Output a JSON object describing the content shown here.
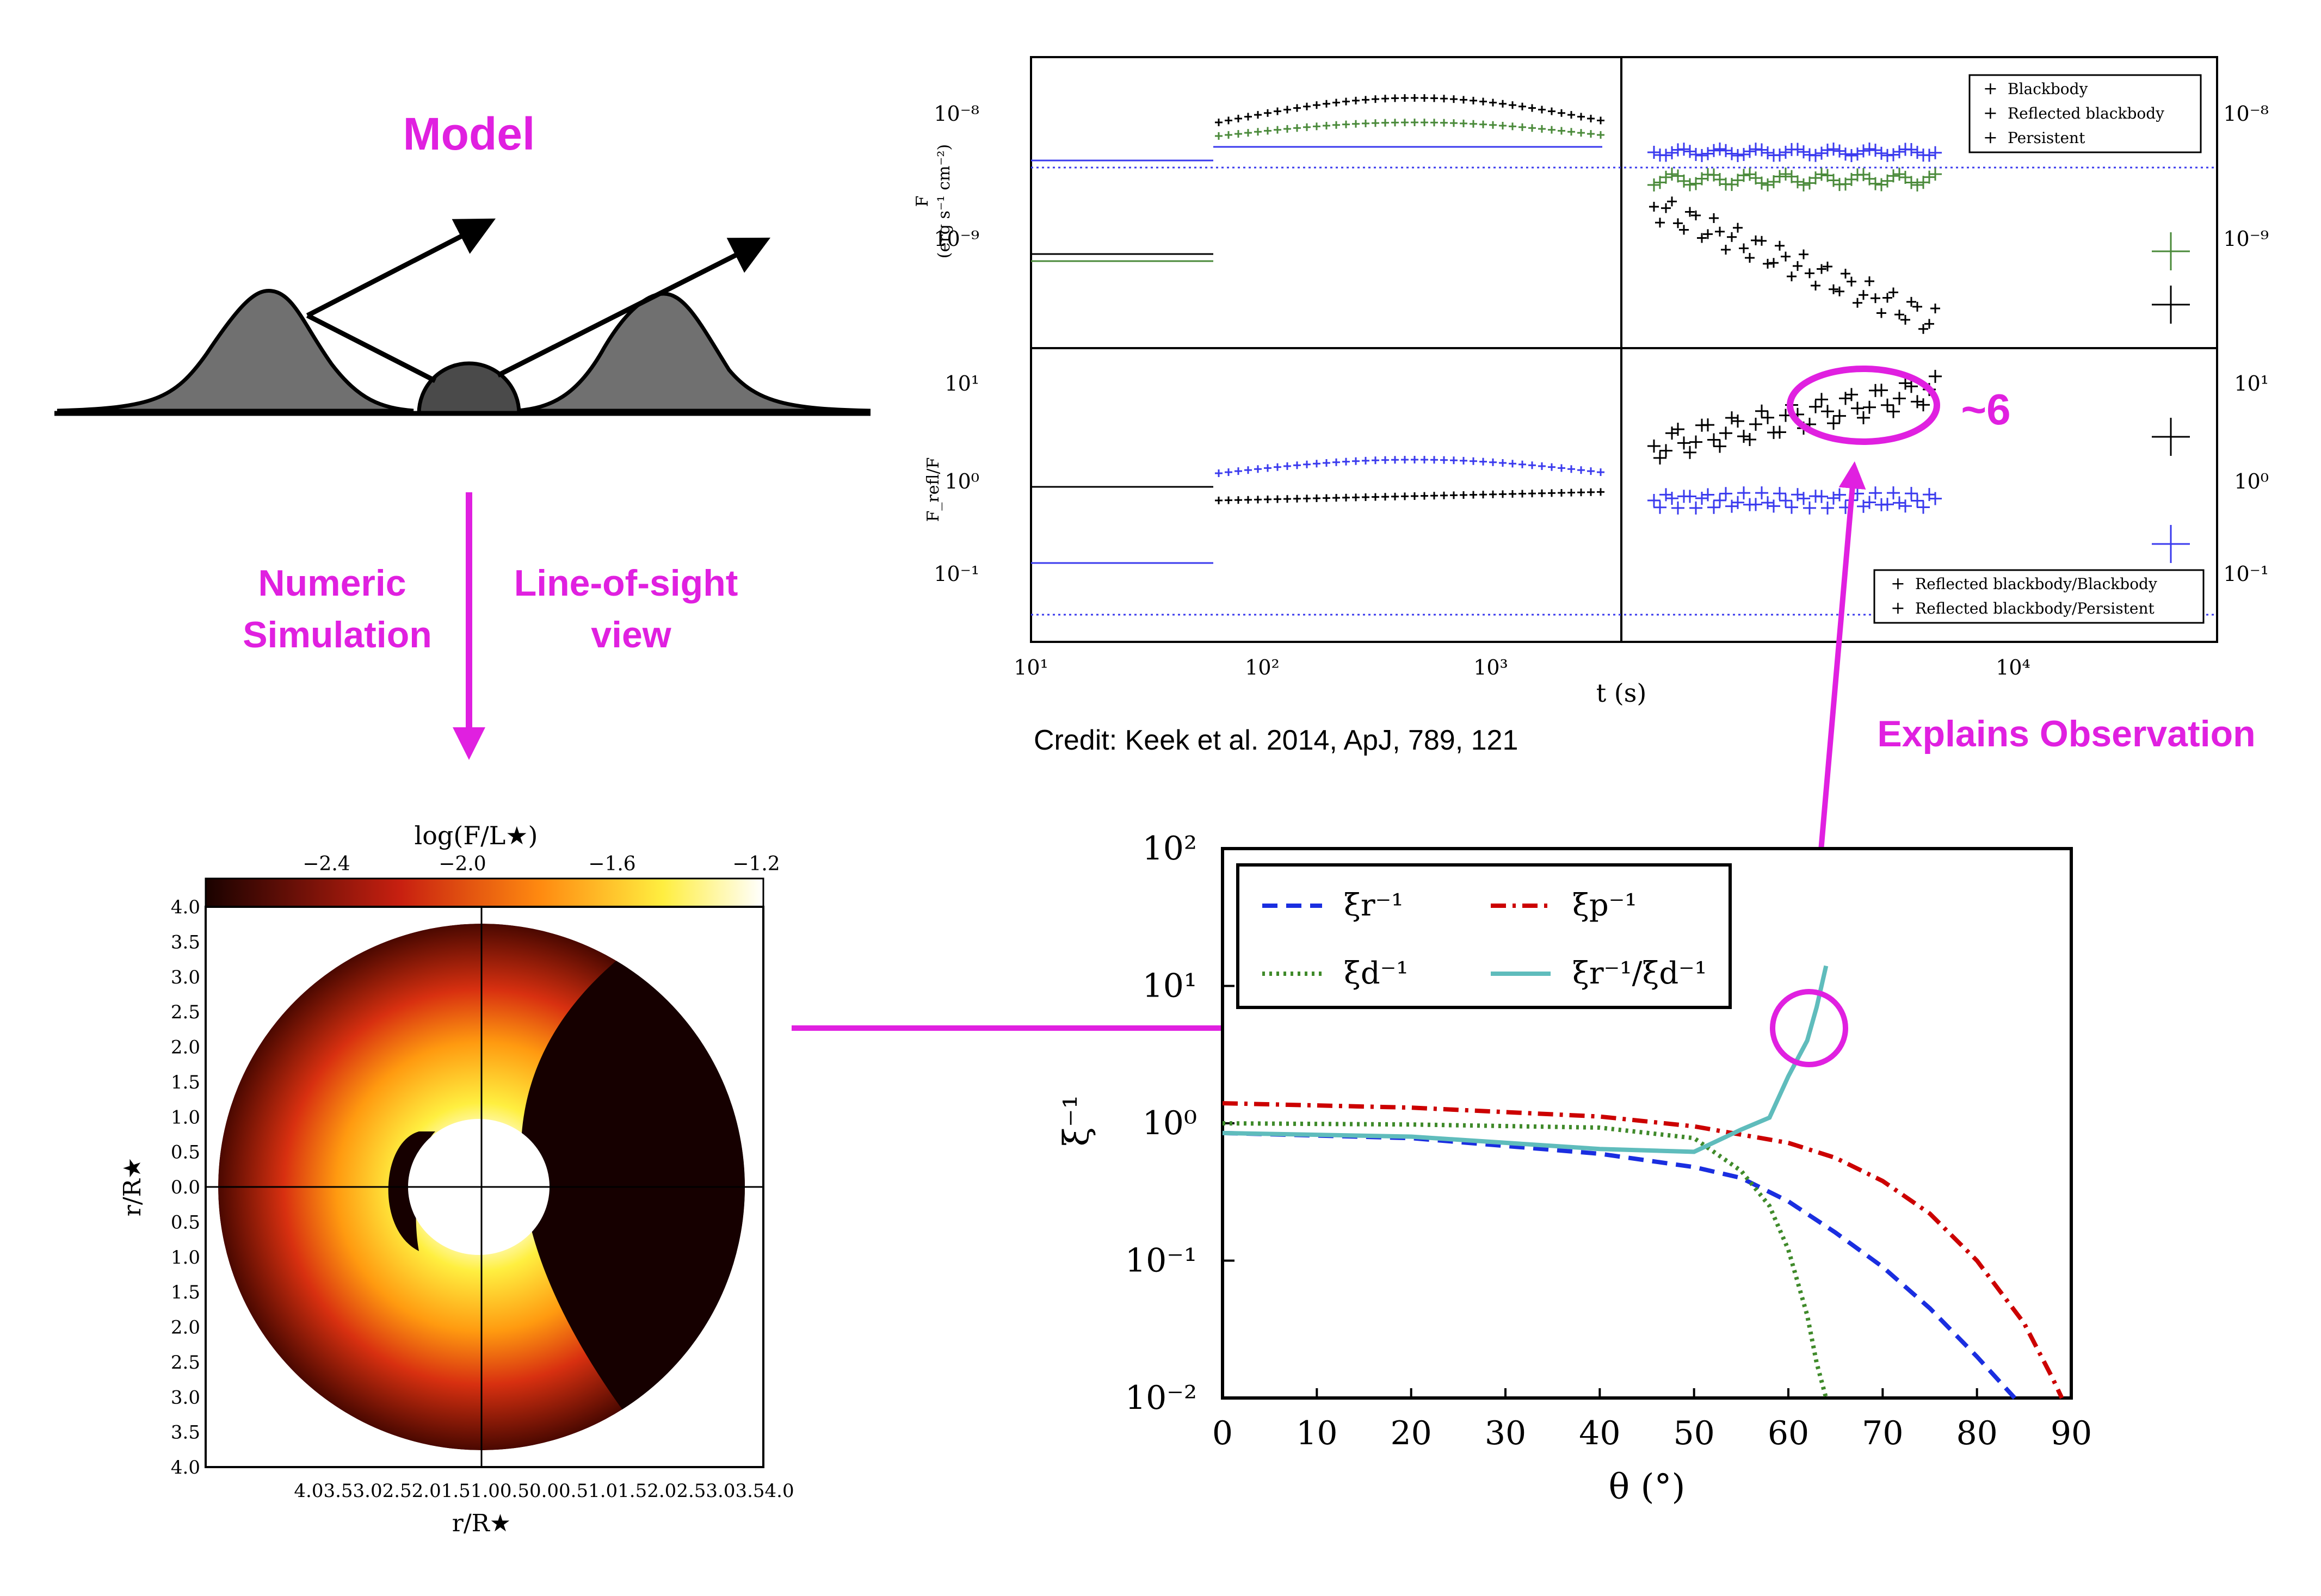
{
  "labels": {
    "model": "Model",
    "numeric_simulation": "Numeric\nSimulation",
    "line_of_sight": "Line-of-sight\nview",
    "explains_observation": "Explains Observation",
    "approx_six": "~6",
    "credit": "Credit: Keek et al. 2014, ApJ, 789, 121"
  },
  "colors": {
    "accent": "#e020e0",
    "gray_peak": "#707070",
    "dark_star": "#4a4a4a",
    "black_series": "#000000",
    "green_series": "#4a8a3a",
    "blue_series": "#3a3aee",
    "teal_series": "#5fbcbc",
    "red_series": "#cc0000"
  },
  "image_panel": {
    "colorbar_label": "log(F/L★)",
    "colorbar_ticks": [
      "−2.4",
      "−2.0",
      "−1.6",
      "−1.2"
    ],
    "y_label": "r/R★",
    "x_label": "r/R★",
    "y_ticks": [
      "4.0",
      "3.5",
      "3.0",
      "2.5",
      "2.0",
      "1.5",
      "1.0",
      "0.5",
      "0.0",
      "0.5",
      "1.0",
      "1.5",
      "2.0",
      "2.5",
      "3.0",
      "3.5",
      "4.0"
    ],
    "x_ticks_joined": "4.03.53.02.52.01.51.00.50.00.51.01.52.02.53.03.54.0"
  },
  "observation_chart": {
    "y_label_top": "F",
    "y_unit_top": "(erg s⁻¹ cm⁻²)",
    "y_label_bottom": "F_refl/F",
    "x_label": "t (s)",
    "top_ticks": [
      "10⁻⁸",
      "10⁻⁹"
    ],
    "bottom_ticks": [
      "10¹",
      "10⁰",
      "10⁻¹"
    ],
    "x_ticks_left": [
      "10¹",
      "10²",
      "10³"
    ],
    "x_ticks_right": [
      "10⁴"
    ],
    "legend_top": [
      "Blackbody",
      "Reflected blackbody",
      "Persistent"
    ],
    "legend_bottom": [
      "Reflected blackbody/Blackbody",
      "Reflected blackbody/Persistent"
    ]
  },
  "chart_data": {
    "type": "line",
    "x_label": "θ (°)",
    "y_label": "ξ⁻¹",
    "xlim": [
      0,
      90
    ],
    "ylim": [
      0.01,
      100
    ],
    "y_scale": "log",
    "x_ticks": [
      "0",
      "10",
      "20",
      "30",
      "40",
      "50",
      "60",
      "70",
      "80",
      "90"
    ],
    "y_ticks": [
      "10²",
      "10¹",
      "10⁰",
      "10⁻¹",
      "10⁻²"
    ],
    "legend_placement": "top-left",
    "series": [
      {
        "name": "ξr⁻¹",
        "style": "dashed",
        "color": "#1a2ee0",
        "x": [
          0,
          20,
          40,
          50,
          55,
          60,
          65,
          70,
          75,
          80,
          84
        ],
        "y": [
          0.85,
          0.78,
          0.6,
          0.48,
          0.4,
          0.27,
          0.16,
          0.09,
          0.045,
          0.02,
          0.01
        ]
      },
      {
        "name": "ξp⁻¹",
        "style": "dashdot",
        "color": "#cc0000",
        "x": [
          0,
          20,
          40,
          50,
          60,
          65,
          70,
          75,
          80,
          85,
          88,
          89
        ],
        "y": [
          1.4,
          1.3,
          1.12,
          0.95,
          0.72,
          0.56,
          0.38,
          0.22,
          0.1,
          0.035,
          0.014,
          0.01
        ]
      },
      {
        "name": "ξd⁻¹",
        "style": "dotted",
        "color": "#3f8a2a",
        "x": [
          0,
          20,
          40,
          50,
          55,
          58,
          60,
          62,
          63,
          64
        ],
        "y": [
          1.0,
          0.98,
          0.93,
          0.78,
          0.45,
          0.25,
          0.12,
          0.04,
          0.018,
          0.01
        ]
      },
      {
        "name": "ξr⁻¹/ξd⁻¹",
        "style": "solid",
        "color": "#5fbcbc",
        "x": [
          0,
          20,
          40,
          50,
          55,
          58,
          60,
          62,
          63,
          64
        ],
        "y": [
          0.85,
          0.8,
          0.65,
          0.62,
          0.9,
          1.1,
          2.2,
          4.0,
          7.0,
          14.0
        ]
      }
    ]
  }
}
